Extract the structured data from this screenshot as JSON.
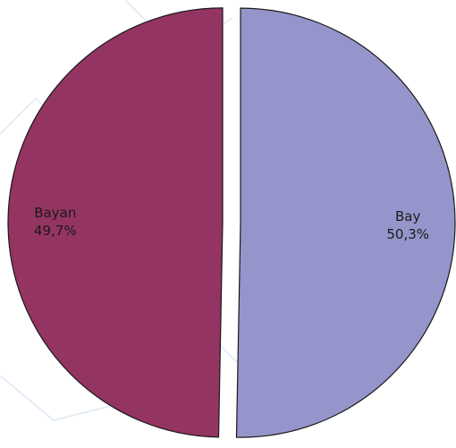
{
  "chart_data": {
    "type": "pie",
    "title": "",
    "exploded": true,
    "start_angle_deg": 0,
    "direction": "clockwise",
    "slices": [
      {
        "label": "Bay",
        "value": 50.3,
        "display": "50,3%",
        "color": "#9595cb"
      },
      {
        "label": "Bayan",
        "value": 49.7,
        "display": "49,7%",
        "color": "#943462"
      }
    ],
    "outline_color": "#1a1a1a",
    "background_decoration_color": "#dde9f5"
  }
}
